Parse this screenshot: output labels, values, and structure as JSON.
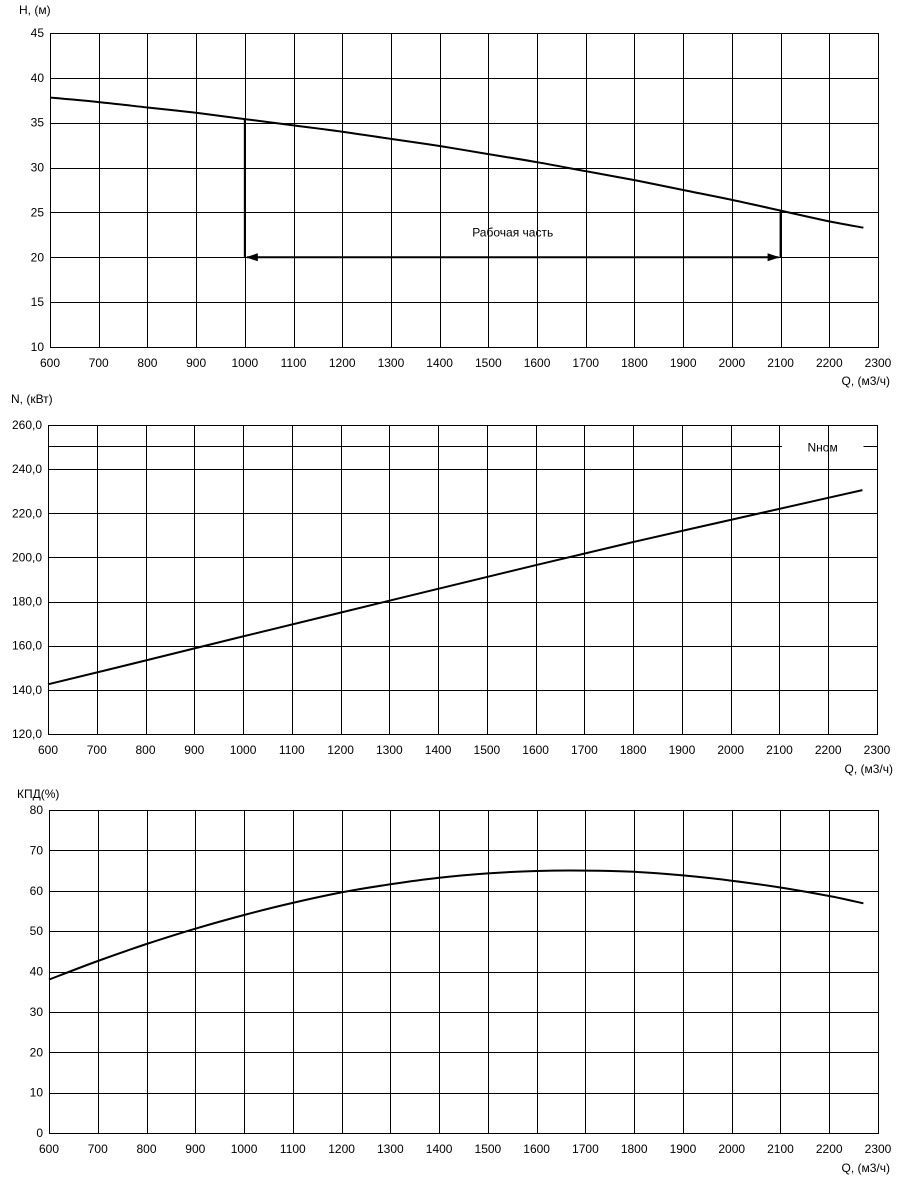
{
  "chart_data": [
    {
      "type": "line",
      "ylabel": "H, (м)",
      "xlabel": "Q, (м3/ч)",
      "xlim": [
        600,
        2300
      ],
      "ylim": [
        10,
        45
      ],
      "x_ticks": [
        600,
        700,
        800,
        900,
        1000,
        1100,
        1200,
        1300,
        1400,
        1500,
        1600,
        1700,
        1800,
        1900,
        2000,
        2100,
        2200,
        2300
      ],
      "y_ticks": [
        "10",
        "15",
        "20",
        "25",
        "30",
        "35",
        "40",
        "45"
      ],
      "grid": true,
      "series": [
        {
          "x": [
            600,
            700,
            800,
            900,
            1000,
            1100,
            1200,
            1300,
            1400,
            1500,
            1600,
            1700,
            1800,
            1900,
            2000,
            2100,
            2200,
            2270
          ],
          "values": [
            37.8,
            37.3,
            36.7,
            36.1,
            35.4,
            34.7,
            34.0,
            33.2,
            32.4,
            31.5,
            30.6,
            29.6,
            28.6,
            27.5,
            26.4,
            25.2,
            24.0,
            23.3
          ]
        }
      ],
      "annotations": [
        {
          "text": "Рабочая часть",
          "x_start": 1000,
          "x_end": 2100,
          "y": 20,
          "x_text": 1550,
          "y_text": 22.3
        }
      ]
    },
    {
      "type": "line",
      "ylabel": "N, (кВт)",
      "xlabel": "Q, (м3/ч)",
      "xlim": [
        600,
        2300
      ],
      "ylim": [
        120,
        260
      ],
      "x_ticks": [
        600,
        700,
        800,
        900,
        1000,
        1100,
        1200,
        1300,
        1400,
        1500,
        1600,
        1700,
        1800,
        1900,
        2000,
        2100,
        2200,
        2300
      ],
      "y_ticks": [
        "120,0",
        "140,0",
        "160,0",
        "180,0",
        "200,0",
        "220,0",
        "240,0",
        "260,0"
      ],
      "grid": true,
      "series": [
        {
          "x": [
            600,
            800,
            1000,
            1200,
            1400,
            1600,
            1800,
            2000,
            2200,
            2270
          ],
          "values": [
            142.5,
            153.3,
            164.2,
            175.0,
            185.8,
            196.5,
            207.0,
            217.0,
            227.0,
            230.5
          ]
        },
        {
          "name": "Nном",
          "x": [
            600,
            2300
          ],
          "values": [
            250.5,
            250.5
          ]
        }
      ]
    },
    {
      "type": "line",
      "ylabel": "КПД(%)",
      "xlabel": "Q, (м3/ч)",
      "xlim": [
        600,
        2300
      ],
      "ylim": [
        0,
        80
      ],
      "x_ticks": [
        600,
        700,
        800,
        900,
        1000,
        1100,
        1200,
        1300,
        1400,
        1500,
        1600,
        1700,
        1800,
        1900,
        2000,
        2100,
        2200,
        2300
      ],
      "y_ticks": [
        "0",
        "10",
        "20",
        "30",
        "40",
        "50",
        "60",
        "70",
        "80"
      ],
      "grid": true,
      "series": [
        {
          "x": [
            600,
            700,
            800,
            900,
            1000,
            1100,
            1200,
            1300,
            1400,
            1500,
            1600,
            1700,
            1800,
            1900,
            2000,
            2100,
            2200,
            2270
          ],
          "values": [
            38.0,
            42.6,
            46.8,
            50.6,
            54.0,
            57.0,
            59.6,
            61.6,
            63.2,
            64.3,
            64.9,
            65.0,
            64.7,
            63.8,
            62.5,
            60.8,
            58.7,
            56.9
          ]
        }
      ]
    }
  ]
}
